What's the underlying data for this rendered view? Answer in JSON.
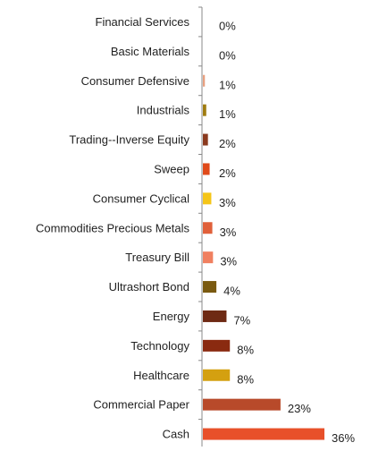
{
  "chart_data": {
    "type": "bar",
    "orientation": "horizontal",
    "categories": [
      "Financial Services",
      "Basic Materials",
      "Consumer Defensive",
      "Industrials",
      "Trading--Inverse Equity",
      "Sweep",
      "Consumer Cyclical",
      "Commodities Precious Metals",
      "Treasury Bill",
      "Ultrashort Bond",
      "Energy",
      "Technology",
      "Healthcare",
      "Commercial Paper",
      "Cash"
    ],
    "values": [
      0.0,
      0.0,
      0.6,
      1.0,
      1.5,
      2.0,
      2.5,
      2.8,
      3.0,
      4.0,
      7.0,
      8.0,
      8.0,
      23.0,
      36.0
    ],
    "data_labels": [
      "0%",
      "0%",
      "1%",
      "1%",
      "2%",
      "2%",
      "3%",
      "3%",
      "3%",
      "4%",
      "7%",
      "8%",
      "8%",
      "23%",
      "36%"
    ],
    "bar_colors": [
      "#d9a07a",
      "#c98a5a",
      "#e8a080",
      "#a07c10",
      "#8b3a1e",
      "#e04a1a",
      "#f5c518",
      "#e0603a",
      "#f08060",
      "#7a5a10",
      "#6e2a14",
      "#8a2a10",
      "#d4a010",
      "#b84a2a",
      "#e8502a"
    ],
    "xlim": [
      0,
      36
    ],
    "axis_color": "#888888",
    "title": "",
    "xlabel": "",
    "ylabel": ""
  }
}
